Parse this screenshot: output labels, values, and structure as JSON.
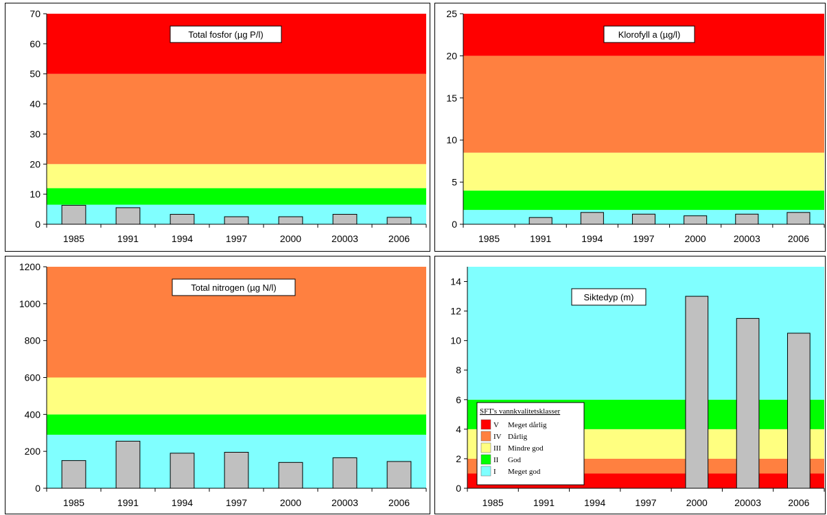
{
  "class_colors": {
    "V": "#ff0000",
    "IV": "#ff8040",
    "III": "#ffff80",
    "II": "#00ff00",
    "I": "#80ffff"
  },
  "bar_color": "#c0c0c0",
  "chart_data": [
    {
      "type": "bar",
      "title": "Total fosfor (µg P/l)",
      "categories": [
        "1985",
        "1991",
        "1994",
        "1997",
        "2000",
        "20003",
        "2006"
      ],
      "values": [
        6.3,
        5.5,
        3.3,
        2.5,
        2.5,
        3.3,
        2.3
      ],
      "ylim": [
        0,
        70
      ],
      "yticks": [
        0,
        10,
        20,
        30,
        40,
        50,
        60,
        70
      ],
      "class_bands": [
        {
          "class": "I",
          "from": 0,
          "to": 6.5
        },
        {
          "class": "II",
          "from": 6.5,
          "to": 12
        },
        {
          "class": "III",
          "from": 12,
          "to": 20
        },
        {
          "class": "IV",
          "from": 20,
          "to": 50
        },
        {
          "class": "V",
          "from": 50,
          "to": 70
        }
      ]
    },
    {
      "type": "bar",
      "title": "Klorofyll a (µg/l)",
      "categories": [
        "1985",
        "1991",
        "1994",
        "1997",
        "2000",
        "20003",
        "2006"
      ],
      "values": [
        null,
        0.8,
        1.4,
        1.2,
        1.0,
        1.2,
        1.4
      ],
      "ylim": [
        0,
        25
      ],
      "yticks": [
        0,
        5,
        10,
        15,
        20,
        25
      ],
      "class_bands": [
        {
          "class": "I",
          "from": 0,
          "to": 1.7
        },
        {
          "class": "II",
          "from": 1.7,
          "to": 4
        },
        {
          "class": "III",
          "from": 4,
          "to": 8.5
        },
        {
          "class": "IV",
          "from": 8.5,
          "to": 20
        },
        {
          "class": "V",
          "from": 20,
          "to": 25
        }
      ]
    },
    {
      "type": "bar",
      "title": "Total nitrogen (µg N/l)",
      "categories": [
        "1985",
        "1991",
        "1994",
        "1997",
        "2000",
        "20003",
        "2006"
      ],
      "values": [
        150,
        255,
        190,
        195,
        140,
        165,
        145
      ],
      "ylim": [
        0,
        1200
      ],
      "yticks": [
        0,
        200,
        400,
        600,
        800,
        1000,
        1200
      ],
      "class_bands": [
        {
          "class": "I",
          "from": 0,
          "to": 290
        },
        {
          "class": "II",
          "from": 290,
          "to": 400
        },
        {
          "class": "III",
          "from": 400,
          "to": 600
        },
        {
          "class": "IV",
          "from": 600,
          "to": 1200
        }
      ]
    },
    {
      "type": "bar",
      "title": "Siktedyp (m)",
      "categories": [
        "1985",
        "1991",
        "1994",
        "1997",
        "2000",
        "20003",
        "2006"
      ],
      "values": [
        null,
        null,
        null,
        null,
        13.0,
        11.5,
        10.5
      ],
      "ylim": [
        0,
        15
      ],
      "yticks": [
        0,
        2,
        4,
        6,
        8,
        10,
        12,
        14
      ],
      "class_bands": [
        {
          "class": "V",
          "from": 0,
          "to": 1
        },
        {
          "class": "IV",
          "from": 1,
          "to": 2
        },
        {
          "class": "III",
          "from": 2,
          "to": 4
        },
        {
          "class": "II",
          "from": 4,
          "to": 6
        },
        {
          "class": "I",
          "from": 6,
          "to": 15
        }
      ]
    }
  ],
  "legend": {
    "title": "SFT's vannkvalitetsklasser",
    "items": [
      {
        "class": "V",
        "roman": "V",
        "label": "Meget dårlig"
      },
      {
        "class": "IV",
        "roman": "IV",
        "label": "Dårlig"
      },
      {
        "class": "III",
        "roman": "III",
        "label": "Mindre god"
      },
      {
        "class": "II",
        "roman": "II",
        "label": "God"
      },
      {
        "class": "I",
        "roman": "I",
        "label": "Meget god"
      }
    ]
  }
}
